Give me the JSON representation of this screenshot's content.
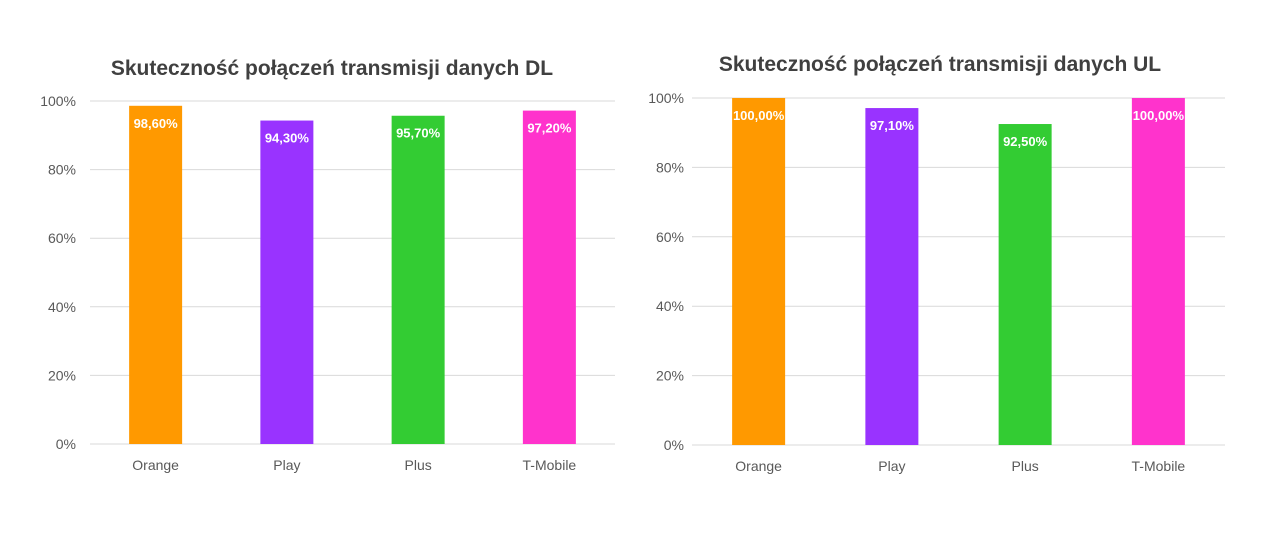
{
  "colors": {
    "Orange": "#ff9900",
    "Play": "#9933ff",
    "Plus": "#33cc33",
    "T-Mobile": "#ff33cc"
  },
  "chart_data": [
    {
      "type": "bar",
      "title": "Skuteczność połączeń transmisji danych DL",
      "categories": [
        "Orange",
        "Play",
        "Plus",
        "T-Mobile"
      ],
      "values": [
        98.6,
        94.3,
        95.7,
        97.2
      ],
      "value_labels": [
        "98,60%",
        "94,30%",
        "95,70%",
        "97,20%"
      ],
      "ylim": [
        0,
        100
      ],
      "yticks": [
        "0%",
        "20%",
        "40%",
        "60%",
        "80%",
        "100%"
      ],
      "grid": true,
      "legend": "none"
    },
    {
      "type": "bar",
      "title": "Skuteczność połączeń transmisji danych UL",
      "categories": [
        "Orange",
        "Play",
        "Plus",
        "T-Mobile"
      ],
      "values": [
        100.0,
        97.1,
        92.5,
        100.0
      ],
      "value_labels": [
        "100,00%",
        "97,10%",
        "92,50%",
        "100,00%"
      ],
      "ylim": [
        0,
        100
      ],
      "yticks": [
        "0%",
        "20%",
        "40%",
        "60%",
        "80%",
        "100%"
      ],
      "grid": true,
      "legend": "none"
    }
  ]
}
